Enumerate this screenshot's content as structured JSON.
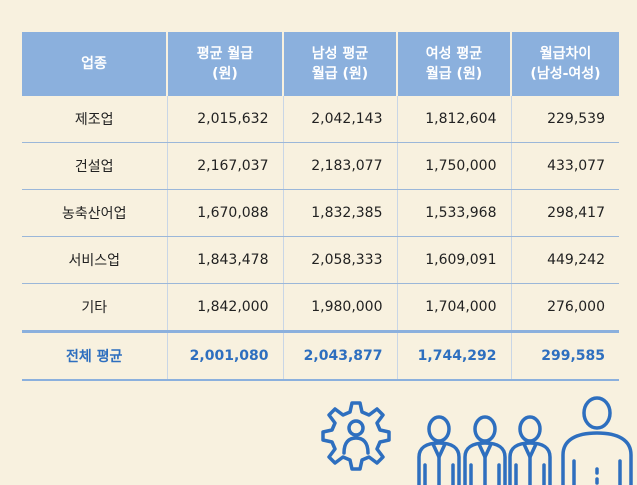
{
  "table": {
    "headers": [
      {
        "line1": "업종",
        "line2": ""
      },
      {
        "line1": "평균 월급",
        "line2": "(원)"
      },
      {
        "line1": "남성 평균",
        "line2": "월급 (원)"
      },
      {
        "line1": "여성 평균",
        "line2": "월급 (원)"
      },
      {
        "line1": "월급차이",
        "line2": "(남성-여성)"
      }
    ],
    "rows": [
      [
        "제조업",
        "2,015,632",
        "2,042,143",
        "1,812,604",
        "229,539"
      ],
      [
        "건설업",
        "2,167,037",
        "2,183,077",
        "1,750,000",
        "433,077"
      ],
      [
        "농축산어업",
        "1,670,088",
        "1,832,385",
        "1,533,968",
        "298,417"
      ],
      [
        "서비스업",
        "1,843,478",
        "2,058,333",
        "1,609,091",
        "449,242"
      ],
      [
        "기타",
        "1,842,000",
        "1,980,000",
        "1,704,000",
        "276,000"
      ]
    ],
    "total": [
      "전체 평균",
      "2,001,080",
      "2,043,877",
      "1,744,292",
      "299,585"
    ]
  },
  "illustration": {
    "icons": [
      "gear-person-icon",
      "worker-icon",
      "worker-icon",
      "worker-icon",
      "person-icon"
    ],
    "color": "#2e6fbf"
  },
  "colors": {
    "background": "#f8f1df",
    "header": "#8bb0dd",
    "accent": "#2e6fbf"
  }
}
